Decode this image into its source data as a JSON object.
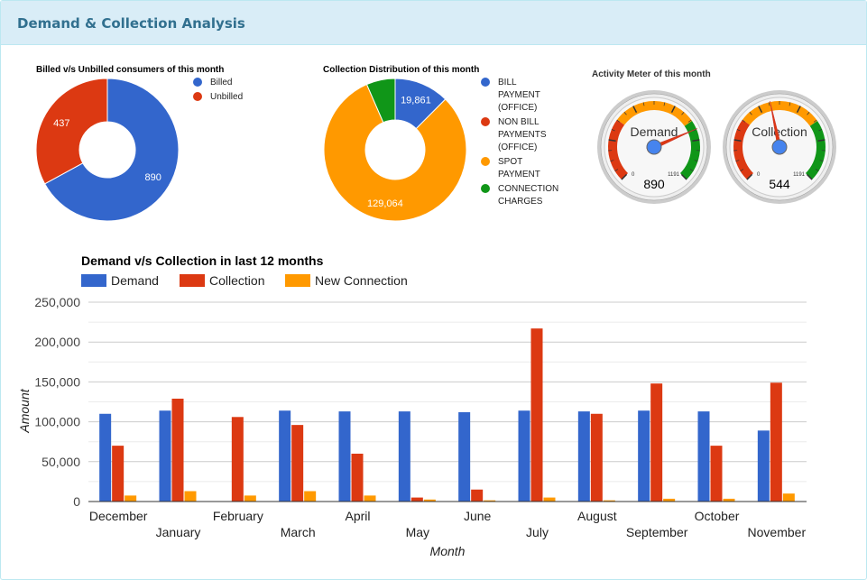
{
  "panel": {
    "title": "Demand & Collection Analysis"
  },
  "chart_data": [
    {
      "type": "pie",
      "title": "Billed v/s Unbilled consumers of this month",
      "labels": [
        "Billed",
        "Unbilled"
      ],
      "values": [
        890,
        437
      ],
      "value_labels": [
        "890",
        "437"
      ],
      "colors": [
        "#3366cc",
        "#dc3912"
      ],
      "donut": true,
      "legend": "right"
    },
    {
      "type": "pie",
      "title": "Collection Distribution of this month",
      "labels": [
        "BILL PAYMENT (OFFICE)",
        "NON BILL PAYMENTS (OFFICE)",
        "SPOT PAYMENT",
        "CONNECTION CHARGES"
      ],
      "legend_lines": [
        [
          "BILL",
          "PAYMENT",
          "(OFFICE)"
        ],
        [
          "NON BILL",
          "PAYMENTS",
          "(OFFICE)"
        ],
        [
          "SPOT",
          "PAYMENT"
        ],
        [
          "CONNECTION",
          "CHARGES"
        ]
      ],
      "values": [
        19861,
        0,
        129064,
        10400
      ],
      "value_labels": [
        "19,861",
        "",
        "129,064",
        ""
      ],
      "colors": [
        "#3366cc",
        "#dc3912",
        "#ff9900",
        "#109618"
      ],
      "donut": true,
      "legend": "right"
    },
    {
      "type": "gauge",
      "title": "Activity Meter of this month",
      "min": 0,
      "max": 1191,
      "min_label": "0",
      "max_label": "1191",
      "gauges": [
        {
          "label": "Demand",
          "value": 890,
          "value_label": "890"
        },
        {
          "label": "Collection",
          "value": 544,
          "value_label": "544"
        }
      ],
      "bands": [
        {
          "from": 0,
          "to": 360,
          "color": "#dc3912"
        },
        {
          "from": 360,
          "to": 840,
          "color": "#ff9900"
        },
        {
          "from": 840,
          "to": 1191,
          "color": "#109618"
        }
      ]
    },
    {
      "type": "bar",
      "title": "Demand v/s Collection in last 12 months",
      "xlabel": "Month",
      "ylabel": "Amount",
      "ylim": [
        0,
        250000
      ],
      "yticks": [
        0,
        50000,
        100000,
        150000,
        200000,
        250000
      ],
      "ytick_labels": [
        "0",
        "50,000",
        "100,000",
        "150,000",
        "200,000",
        "250,000"
      ],
      "grid": true,
      "legend": "top",
      "categories": [
        "December",
        "January",
        "February",
        "March",
        "April",
        "May",
        "June",
        "July",
        "August",
        "September",
        "October",
        "November"
      ],
      "series": [
        {
          "name": "Demand",
          "color": "#3366cc",
          "values": [
            110000,
            114000,
            0,
            114000,
            113000,
            113000,
            112000,
            114000,
            113000,
            114000,
            113000,
            89000
          ]
        },
        {
          "name": "Collection",
          "color": "#dc3912",
          "values": [
            70000,
            129000,
            106000,
            96000,
            60000,
            5000,
            15000,
            217000,
            110000,
            148000,
            70000,
            149000
          ]
        },
        {
          "name": "New Connection",
          "color": "#ff9900",
          "values": [
            7500,
            13000,
            7500,
            13000,
            7500,
            2500,
            1500,
            5000,
            1500,
            3500,
            3500,
            10000
          ]
        }
      ]
    }
  ]
}
